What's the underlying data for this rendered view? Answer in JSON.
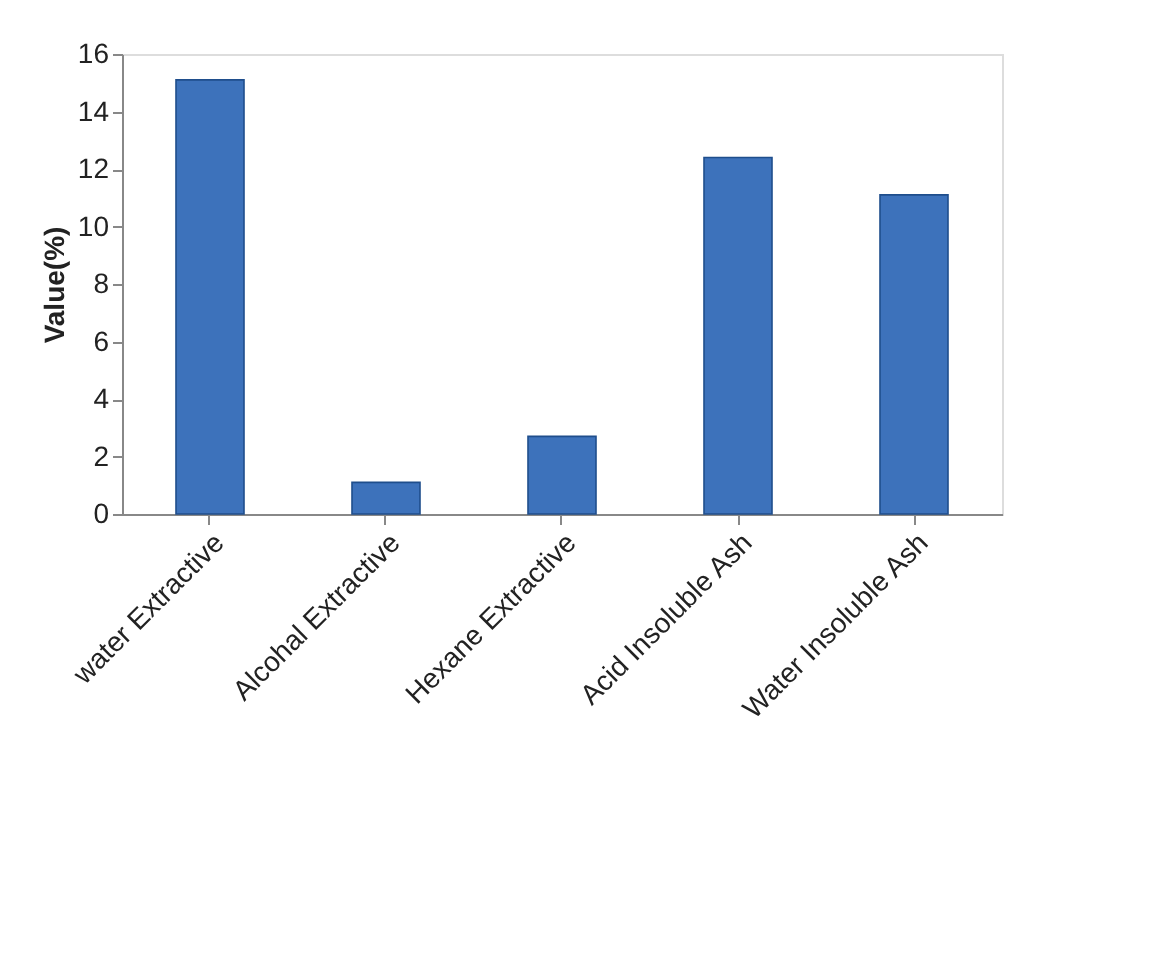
{
  "chart_data": {
    "type": "bar",
    "ylabel": "Value(%)",
    "categories": [
      "water Extractive",
      "Alcohal Extractive",
      "Hexane Extractive",
      "Acid Insoluble Ash",
      "Water Insoluble Ash"
    ],
    "values": [
      15.1,
      1.1,
      2.7,
      12.4,
      11.1
    ],
    "color": "#3d72bb",
    "ylim": [
      0,
      16
    ],
    "yticks": [
      0,
      2,
      4,
      6,
      8,
      10,
      12,
      14,
      16
    ],
    "grid": false
  }
}
